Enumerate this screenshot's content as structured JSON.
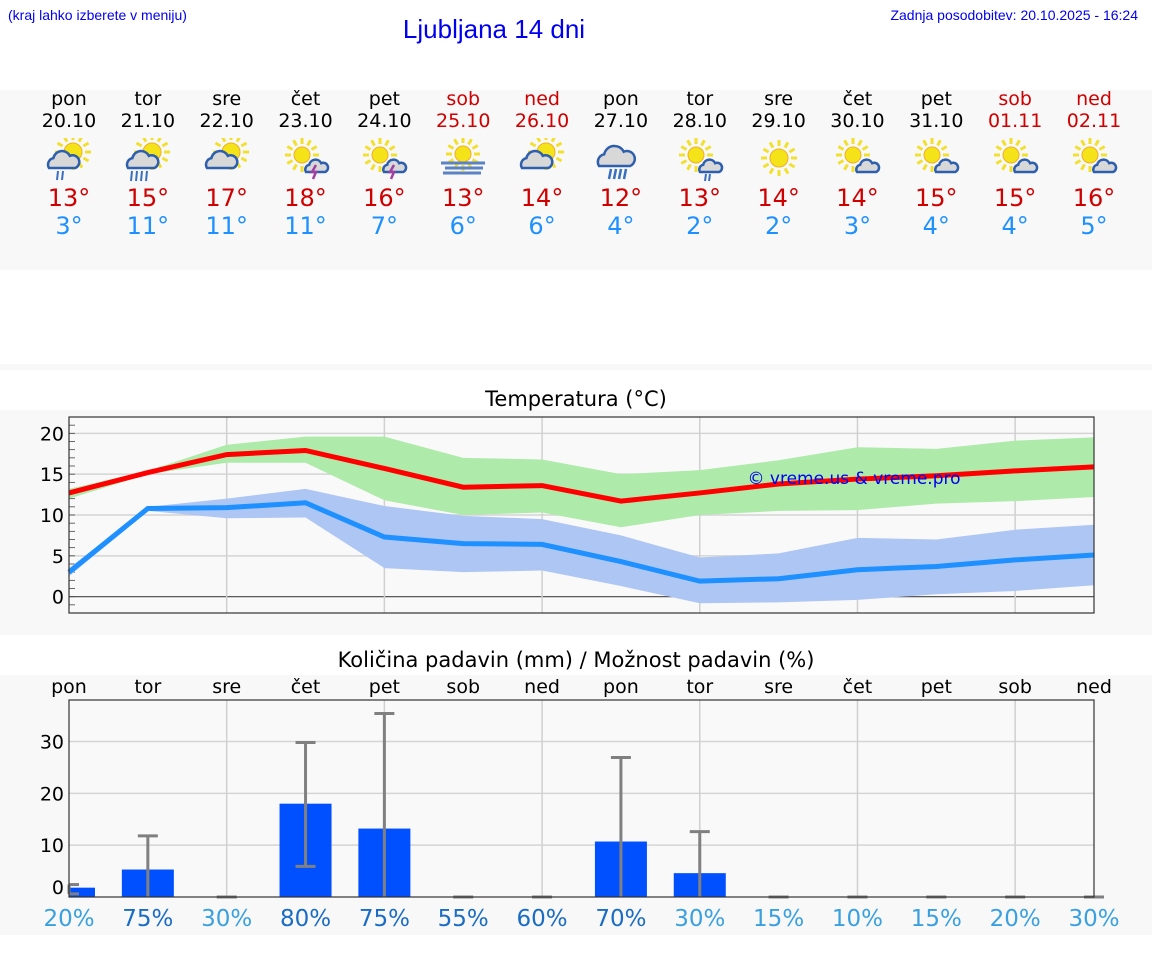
{
  "header": {
    "hint": "(kraj lahko izberete v meniju)",
    "title": "Ljubljana 14 dni",
    "updated": "Zadnja posodobitev: 20.10.2025 - 16:24"
  },
  "days": [
    {
      "wd": "pon",
      "date": "20.10",
      "icon": "sun-cloud-rain-light",
      "max": "13°",
      "min": "3°",
      "weekend": false
    },
    {
      "wd": "tor",
      "date": "21.10",
      "icon": "sun-cloud-rain",
      "max": "15°",
      "min": "11°",
      "weekend": false
    },
    {
      "wd": "sre",
      "date": "22.10",
      "icon": "sun-cloud",
      "max": "17°",
      "min": "11°",
      "weekend": false
    },
    {
      "wd": "čet",
      "date": "23.10",
      "icon": "sun-cloud-thunder",
      "max": "18°",
      "min": "11°",
      "weekend": false
    },
    {
      "wd": "pet",
      "date": "24.10",
      "icon": "sun-cloud-thunder",
      "max": "16°",
      "min": "7°",
      "weekend": false
    },
    {
      "wd": "sob",
      "date": "25.10",
      "icon": "sun-fog",
      "max": "13°",
      "min": "6°",
      "weekend": true
    },
    {
      "wd": "ned",
      "date": "26.10",
      "icon": "sun-cloud",
      "max": "14°",
      "min": "6°",
      "weekend": true
    },
    {
      "wd": "pon",
      "date": "27.10",
      "icon": "cloud-rain",
      "max": "12°",
      "min": "4°",
      "weekend": false
    },
    {
      "wd": "tor",
      "date": "28.10",
      "icon": "sun-small-cloud-rain",
      "max": "13°",
      "min": "2°",
      "weekend": false
    },
    {
      "wd": "sre",
      "date": "29.10",
      "icon": "sun",
      "max": "14°",
      "min": "2°",
      "weekend": false
    },
    {
      "wd": "čet",
      "date": "30.10",
      "icon": "sun-small-cloud",
      "max": "14°",
      "min": "3°",
      "weekend": false
    },
    {
      "wd": "pet",
      "date": "31.10",
      "icon": "sun-small-cloud",
      "max": "15°",
      "min": "4°",
      "weekend": false
    },
    {
      "wd": "sob",
      "date": "01.11",
      "icon": "sun-small-cloud",
      "max": "15°",
      "min": "4°",
      "weekend": true
    },
    {
      "wd": "ned",
      "date": "02.11",
      "icon": "sun-small-cloud",
      "max": "16°",
      "min": "5°",
      "weekend": true
    }
  ],
  "chart_data": [
    {
      "type": "line",
      "title": "Temperatura (°C)",
      "ylim": [
        -2,
        22
      ],
      "yticks": [
        0,
        5,
        10,
        15,
        20
      ],
      "grid": true,
      "watermark": "© vreme.us & vreme.pro",
      "x": [
        "20.10",
        "21.10",
        "22.10",
        "23.10",
        "24.10",
        "25.10",
        "26.10",
        "27.10",
        "28.10",
        "29.10",
        "30.10",
        "31.10",
        "01.11",
        "02.11"
      ],
      "series": [
        {
          "role": "max",
          "color": "#ff0000",
          "values": [
            12.7,
            15.2,
            17.4,
            17.9,
            15.7,
            13.4,
            13.6,
            11.7,
            12.7,
            13.8,
            14.4,
            14.8,
            15.4,
            15.9
          ],
          "band_low": [
            12.0,
            15.0,
            16.4,
            16.4,
            11.8,
            10.0,
            10.3,
            8.5,
            10.0,
            10.5,
            10.6,
            11.4,
            11.7,
            12.2
          ],
          "band_high": [
            13.2,
            15.4,
            18.6,
            19.6,
            19.6,
            17.0,
            16.8,
            15.0,
            15.5,
            16.7,
            18.3,
            18.1,
            19.1,
            19.5
          ],
          "band_color": "#aeeaa9"
        },
        {
          "role": "min",
          "color": "#1e90ff",
          "values": [
            3.0,
            10.8,
            10.9,
            11.5,
            7.3,
            6.5,
            6.4,
            4.3,
            1.9,
            2.2,
            3.3,
            3.7,
            4.5,
            5.1
          ],
          "band_low": [
            2.5,
            10.5,
            9.6,
            9.7,
            3.5,
            3.0,
            3.2,
            1.3,
            -0.8,
            -0.7,
            -0.4,
            0.3,
            0.7,
            1.4
          ],
          "band_high": [
            3.5,
            11.0,
            12.0,
            13.2,
            11.1,
            9.9,
            9.5,
            7.5,
            4.8,
            5.3,
            7.2,
            7.0,
            8.2,
            8.8
          ],
          "band_color": "#aec6f3"
        }
      ]
    },
    {
      "type": "bar",
      "title": "Količina padavin (mm) / Možnost padavin (%)",
      "ylim": [
        0,
        38
      ],
      "yticks": [
        0,
        10,
        20,
        30
      ],
      "grid": true,
      "categories": [
        "pon",
        "tor",
        "sre",
        "čet",
        "pet",
        "sob",
        "ned",
        "pon",
        "tor",
        "sre",
        "čet",
        "pet",
        "sob",
        "ned"
      ],
      "values": [
        1.8,
        5.3,
        0,
        18,
        13.2,
        0,
        0,
        10.7,
        4.6,
        0,
        0,
        0,
        0,
        0
      ],
      "err_low": [
        0.6,
        0,
        0,
        5.9,
        0,
        0,
        0,
        0,
        0,
        0,
        0,
        0,
        0,
        0
      ],
      "err_high": [
        2.4,
        11.8,
        0,
        29.8,
        35.4,
        0,
        0,
        26.9,
        12.6,
        0,
        0,
        0,
        0,
        0
      ],
      "probability": [
        "20%",
        "75%",
        "30%",
        "80%",
        "75%",
        "55%",
        "60%",
        "70%",
        "30%",
        "15%",
        "10%",
        "15%",
        "20%",
        "30%"
      ],
      "prob_values": [
        20,
        75,
        30,
        80,
        75,
        55,
        60,
        70,
        30,
        15,
        10,
        15,
        20,
        30
      ],
      "bar_color": "#0050ff",
      "err_color": "#808080"
    }
  ]
}
